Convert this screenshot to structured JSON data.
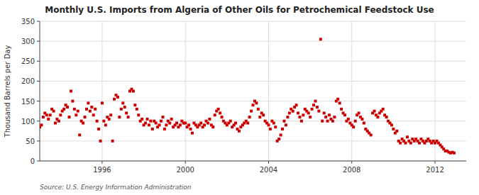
{
  "chart_data": {
    "type": "scatter",
    "title": "Monthly U.S. Imports from Algeria of Other Oils for Petrochemical Feedstock Use",
    "ylabel": "Thousand Barrels per Day",
    "annotations": [
      "Source: U.S. Energy Information Administration"
    ],
    "color": "#CC0000",
    "marker": "square",
    "grid": true,
    "xlim": [
      1993.0,
      2013.5
    ],
    "xticks": [
      1996,
      2000,
      2004,
      2008,
      2012
    ],
    "ylim": [
      0,
      350
    ],
    "yticks": [
      0,
      50,
      100,
      150,
      200,
      250,
      300,
      350
    ],
    "x": [
      1993.0,
      1993.083,
      1993.167,
      1993.25,
      1993.333,
      1993.417,
      1993.5,
      1993.583,
      1993.667,
      1993.75,
      1993.833,
      1993.917,
      1994.0,
      1994.083,
      1994.167,
      1994.25,
      1994.333,
      1994.417,
      1994.5,
      1994.583,
      1994.667,
      1994.75,
      1994.833,
      1994.917,
      1995.0,
      1995.083,
      1995.167,
      1995.25,
      1995.333,
      1995.417,
      1995.5,
      1995.583,
      1995.667,
      1995.75,
      1995.833,
      1995.917,
      1996.0,
      1996.083,
      1996.167,
      1996.25,
      1996.333,
      1996.417,
      1996.5,
      1996.583,
      1996.667,
      1996.75,
      1996.833,
      1996.917,
      1997.0,
      1997.083,
      1997.167,
      1997.25,
      1997.333,
      1997.417,
      1997.5,
      1997.583,
      1997.667,
      1997.75,
      1997.833,
      1997.917,
      1998.0,
      1998.083,
      1998.167,
      1998.25,
      1998.333,
      1998.417,
      1998.5,
      1998.583,
      1998.667,
      1998.75,
      1998.833,
      1998.917,
      1999.0,
      1999.083,
      1999.167,
      1999.25,
      1999.333,
      1999.417,
      1999.5,
      1999.583,
      1999.667,
      1999.75,
      1999.833,
      1999.917,
      2000.0,
      2000.083,
      2000.167,
      2000.25,
      2000.333,
      2000.417,
      2000.5,
      2000.583,
      2000.667,
      2000.75,
      2000.833,
      2000.917,
      2001.0,
      2001.083,
      2001.167,
      2001.25,
      2001.333,
      2001.417,
      2001.5,
      2001.583,
      2001.667,
      2001.75,
      2001.833,
      2001.917,
      2002.0,
      2002.083,
      2002.167,
      2002.25,
      2002.333,
      2002.417,
      2002.5,
      2002.583,
      2002.667,
      2002.75,
      2002.833,
      2002.917,
      2003.0,
      2003.083,
      2003.167,
      2003.25,
      2003.333,
      2003.417,
      2003.5,
      2003.583,
      2003.667,
      2003.75,
      2003.833,
      2003.917,
      2004.0,
      2004.083,
      2004.167,
      2004.25,
      2004.333,
      2004.417,
      2004.5,
      2004.583,
      2004.667,
      2004.75,
      2004.833,
      2004.917,
      2005.0,
      2005.083,
      2005.167,
      2005.25,
      2005.333,
      2005.417,
      2005.5,
      2005.583,
      2005.667,
      2005.75,
      2005.833,
      2005.917,
      2006.0,
      2006.083,
      2006.167,
      2006.25,
      2006.333,
      2006.417,
      2006.5,
      2006.583,
      2006.667,
      2006.75,
      2006.833,
      2006.917,
      2007.0,
      2007.083,
      2007.167,
      2007.25,
      2007.333,
      2007.417,
      2007.5,
      2007.583,
      2007.667,
      2007.75,
      2007.833,
      2007.917,
      2008.0,
      2008.083,
      2008.167,
      2008.25,
      2008.333,
      2008.417,
      2008.5,
      2008.583,
      2008.667,
      2008.75,
      2008.833,
      2008.917,
      2009.0,
      2009.083,
      2009.167,
      2009.25,
      2009.333,
      2009.417,
      2009.5,
      2009.583,
      2009.667,
      2009.75,
      2009.833,
      2009.917,
      2010.0,
      2010.083,
      2010.167,
      2010.25,
      2010.333,
      2010.417,
      2010.5,
      2010.583,
      2010.667,
      2010.75,
      2010.833,
      2010.917,
      2011.0,
      2011.083,
      2011.167,
      2011.25,
      2011.333,
      2011.417,
      2011.5,
      2011.583,
      2011.667,
      2011.75,
      2011.833,
      2011.917,
      2012.0,
      2012.083,
      2012.167,
      2012.25,
      2012.333,
      2012.417,
      2012.5,
      2012.583,
      2012.667,
      2012.75,
      2012.833,
      2012.917
    ],
    "values": [
      85,
      90,
      110,
      120,
      115,
      105,
      115,
      130,
      125,
      95,
      105,
      100,
      115,
      125,
      130,
      140,
      135,
      110,
      175,
      150,
      130,
      115,
      125,
      65,
      100,
      95,
      110,
      130,
      145,
      125,
      135,
      115,
      130,
      100,
      80,
      50,
      145,
      100,
      90,
      110,
      105,
      115,
      50,
      155,
      165,
      160,
      110,
      130,
      145,
      135,
      120,
      110,
      175,
      180,
      175,
      140,
      130,
      115,
      100,
      105,
      90,
      95,
      105,
      90,
      100,
      80,
      100,
      95,
      85,
      90,
      100,
      110,
      80,
      90,
      100,
      95,
      105,
      85,
      90,
      95,
      85,
      90,
      100,
      95,
      95,
      85,
      90,
      80,
      70,
      95,
      90,
      85,
      90,
      95,
      85,
      90,
      100,
      95,
      105,
      90,
      85,
      115,
      125,
      130,
      120,
      110,
      100,
      95,
      90,
      95,
      100,
      85,
      90,
      95,
      80,
      75,
      85,
      90,
      95,
      100,
      95,
      110,
      125,
      140,
      150,
      145,
      130,
      110,
      120,
      115,
      100,
      95,
      90,
      80,
      100,
      95,
      85,
      50,
      55,
      65,
      80,
      100,
      90,
      110,
      120,
      130,
      125,
      135,
      140,
      120,
      110,
      100,
      115,
      130,
      125,
      120,
      110,
      130,
      140,
      150,
      135,
      125,
      305,
      100,
      120,
      110,
      100,
      115,
      105,
      100,
      110,
      150,
      155,
      145,
      130,
      120,
      115,
      100,
      105,
      95,
      90,
      85,
      100,
      115,
      120,
      110,
      105,
      95,
      80,
      75,
      70,
      65,
      120,
      125,
      115,
      110,
      120,
      125,
      130,
      115,
      110,
      100,
      95,
      90,
      80,
      70,
      75,
      50,
      45,
      55,
      50,
      45,
      60,
      50,
      45,
      55,
      50,
      55,
      50,
      45,
      55,
      50,
      45,
      50,
      55,
      50,
      45,
      50,
      45,
      50,
      45,
      40,
      35,
      30,
      25,
      25,
      22,
      20,
      22,
      20
    ]
  }
}
